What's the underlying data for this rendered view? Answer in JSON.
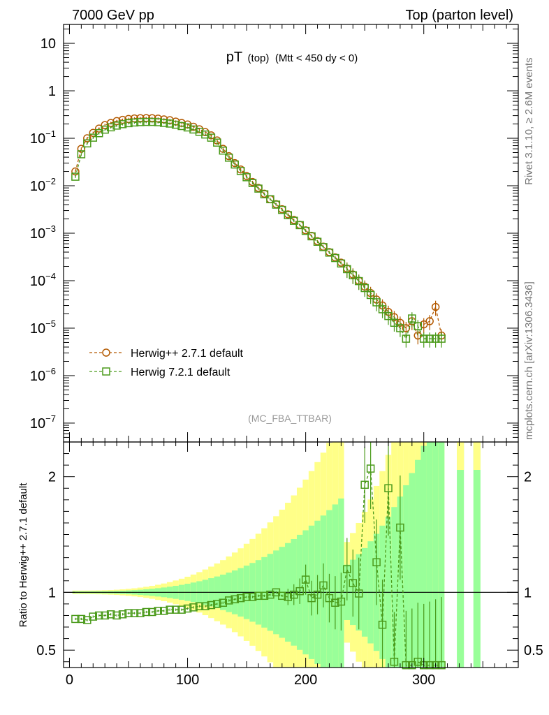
{
  "header": {
    "left": "7000 GeV pp",
    "right": "Top (parton level)"
  },
  "plot_title": {
    "main": "pT",
    "sub1": "(top)",
    "sub2": "(Mtt < 450 dy < 0)"
  },
  "watermark": "(MC_FBA_TTBAR)",
  "side_text": {
    "rivet": "Rivet 3.1.10, ≥ 2.6M events",
    "source": "mcplots.cern.ch [arXiv:1306.3436]"
  },
  "colors": {
    "herwigpp": "#b35900",
    "herwig7": "#4a9a1a",
    "band_yellow": "#ffff88",
    "band_green": "#99ff99"
  },
  "chart_data": [
    {
      "type": "line",
      "yscale": "log",
      "xlim": [
        -5,
        380
      ],
      "ylim": [
        4e-08,
        25
      ],
      "y_tick_labels": [
        "10^-7",
        "10^-6",
        "10^-5",
        "10^-4",
        "10^-3",
        "10^-2",
        "10^-1",
        "1",
        "10"
      ],
      "x": [
        5,
        10,
        15,
        20,
        25,
        30,
        35,
        40,
        45,
        50,
        55,
        60,
        65,
        70,
        75,
        80,
        85,
        90,
        95,
        100,
        105,
        110,
        115,
        120,
        125,
        130,
        135,
        140,
        145,
        150,
        155,
        160,
        165,
        170,
        175,
        180,
        185,
        190,
        195,
        200,
        205,
        210,
        215,
        220,
        225,
        230,
        235,
        240,
        245,
        250,
        255,
        260,
        265,
        270,
        275,
        280,
        285,
        290,
        295,
        300,
        305,
        310,
        315
      ],
      "series": [
        {
          "name": "Herwig++ 2.7.1 default",
          "marker": "circle",
          "values": [
            0.02,
            0.06,
            0.1,
            0.13,
            0.16,
            0.19,
            0.21,
            0.23,
            0.245,
            0.255,
            0.262,
            0.265,
            0.266,
            0.265,
            0.26,
            0.25,
            0.24,
            0.225,
            0.21,
            0.195,
            0.175,
            0.155,
            0.135,
            0.115,
            0.09,
            0.06,
            0.042,
            0.03,
            0.022,
            0.016,
            0.012,
            0.009,
            0.0068,
            0.0052,
            0.0041,
            0.0032,
            0.0025,
            0.0019,
            0.0015,
            0.00115,
            0.00088,
            0.00068,
            0.00052,
            0.0004,
            0.00031,
            0.00024,
            0.00018,
            0.000135,
            0.0001,
            7.5e-05,
            5.5e-05,
            4e-05,
            3e-05,
            2.2e-05,
            1.7e-05,
            1.3e-05,
            1e-05,
            1.4e-05,
            7e-06,
            1.2e-05,
            1.4e-05,
            2.8e-05,
            7e-06
          ]
        },
        {
          "name": "Herwig 7.2.1 default",
          "marker": "square",
          "values": [
            0.0155,
            0.046,
            0.078,
            0.103,
            0.128,
            0.152,
            0.17,
            0.185,
            0.198,
            0.208,
            0.215,
            0.219,
            0.221,
            0.221,
            0.218,
            0.211,
            0.204,
            0.193,
            0.181,
            0.169,
            0.153,
            0.137,
            0.12,
            0.103,
            0.081,
            0.055,
            0.039,
            0.028,
            0.0205,
            0.0151,
            0.0114,
            0.0087,
            0.0066,
            0.0052,
            0.004,
            0.0031,
            0.0024,
            0.00183,
            0.00148,
            0.00112,
            0.00086,
            0.00066,
            0.00051,
            0.00039,
            0.0003,
            0.00023,
            0.000175,
            0.00013,
            9.8e-05,
            7e-05,
            5e-05,
            3.5e-05,
            2.5e-05,
            1.8e-05,
            1.3e-05,
            1e-05,
            6e-06,
            1.6e-05,
            1.1e-05,
            6e-06,
            6e-06,
            6e-06,
            6e-06
          ]
        }
      ]
    },
    {
      "type": "line",
      "ylabel": "Ratio to Herwig++ 2.7.1 default",
      "xlim": [
        -5,
        380
      ],
      "ylim": [
        0.35,
        2.3
      ],
      "x_ticks": [
        0,
        100,
        200,
        300
      ],
      "y_ticks": [
        0.5,
        1,
        2
      ],
      "reference_line": 1,
      "x": [
        5,
        10,
        15,
        20,
        25,
        30,
        35,
        40,
        45,
        50,
        55,
        60,
        65,
        70,
        75,
        80,
        85,
        90,
        95,
        100,
        105,
        110,
        115,
        120,
        125,
        130,
        135,
        140,
        145,
        150,
        155,
        160,
        165,
        170,
        175,
        180,
        185,
        190,
        195,
        200,
        205,
        210,
        215,
        220,
        225,
        230,
        235,
        240,
        245,
        250,
        255,
        260,
        265,
        270,
        275,
        280,
        285,
        290,
        295,
        300,
        305,
        310,
        315
      ],
      "series": [
        {
          "name": "Herwig 7.2.1 default",
          "values": [
            0.77,
            0.77,
            0.76,
            0.79,
            0.8,
            0.8,
            0.81,
            0.8,
            0.81,
            0.82,
            0.82,
            0.82,
            0.83,
            0.83,
            0.84,
            0.84,
            0.85,
            0.85,
            0.85,
            0.86,
            0.87,
            0.88,
            0.88,
            0.89,
            0.9,
            0.91,
            0.93,
            0.94,
            0.95,
            0.96,
            0.96,
            0.97,
            0.97,
            0.98,
            1.0,
            0.97,
            0.96,
            0.98,
            1.01,
            1.11,
            0.95,
            0.98,
            1.06,
            0.95,
            0.91,
            0.92,
            1.2,
            1.08,
            0.99,
            1.93,
            2.07,
            1.26,
            0.72,
            1.9,
            0.4,
            1.56,
            0.37,
            0.37,
            0.4,
            0.37,
            0.37,
            0.37,
            0.37
          ]
        }
      ]
    }
  ]
}
